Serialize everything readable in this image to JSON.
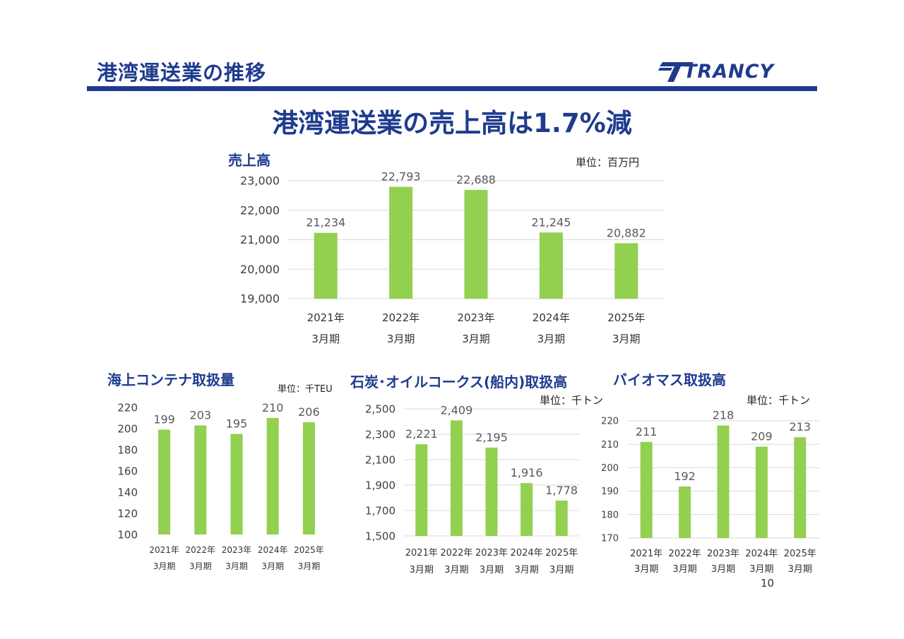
{
  "header": {
    "title": "港湾運送業の推移",
    "logo_text": "TRANCY"
  },
  "headline": "港湾運送業の売上高は1.7%減",
  "page_number": "10",
  "colors": {
    "brand": "#1f3b8f",
    "bar": "#92d050",
    "grid": "#d9d9d9",
    "label": "#595959"
  },
  "chart_data": [
    {
      "type": "bar",
      "title": "売上高",
      "unit": "単位：百万円",
      "categories": [
        "2021年\n3月期",
        "2022年\n3月期",
        "2023年\n3月期",
        "2024年\n3月期",
        "2025年\n3月期"
      ],
      "values": [
        21234,
        22793,
        22688,
        21245,
        20882
      ],
      "value_labels": [
        "21,234",
        "22,793",
        "22,688",
        "21,245",
        "20,882"
      ],
      "ylim": [
        19000,
        23000
      ],
      "yticks": [
        19000,
        20000,
        21000,
        22000,
        23000
      ],
      "ytick_labels": [
        "19,000",
        "20,000",
        "21,000",
        "22,000",
        "23,000"
      ],
      "grid": true
    },
    {
      "type": "bar",
      "title": "海上コンテナ取扱量",
      "unit": "単位：千TEU",
      "categories": [
        "2021年\n3月期",
        "2022年\n3月期",
        "2023年\n3月期",
        "2024年\n3月期",
        "2025年\n3月期"
      ],
      "values": [
        199,
        203,
        195,
        210,
        206
      ],
      "value_labels": [
        "199",
        "203",
        "195",
        "210",
        "206"
      ],
      "ylim": [
        100,
        220
      ],
      "yticks": [
        100,
        120,
        140,
        160,
        180,
        200,
        220
      ],
      "ytick_labels": [
        "100",
        "120",
        "140",
        "160",
        "180",
        "200",
        "220"
      ],
      "grid": false
    },
    {
      "type": "bar",
      "title": "石炭･オイルコークス(船内)取扱高",
      "unit": "単位：千トン",
      "categories": [
        "2021年\n3月期",
        "2022年\n3月期",
        "2023年\n3月期",
        "2024年\n3月期",
        "2025年\n3月期"
      ],
      "values": [
        2221,
        2409,
        2195,
        1916,
        1778
      ],
      "value_labels": [
        "2,221",
        "2,409",
        "2,195",
        "1,916",
        "1,778"
      ],
      "ylim": [
        1500,
        2500
      ],
      "yticks": [
        1500,
        1700,
        1900,
        2100,
        2300,
        2500
      ],
      "ytick_labels": [
        "1,500",
        "1,700",
        "1,900",
        "2,100",
        "2,300",
        "2,500"
      ],
      "grid": true
    },
    {
      "type": "bar",
      "title": "バイオマス取扱高",
      "unit": "単位：千トン",
      "categories": [
        "2021年\n3月期",
        "2022年\n3月期",
        "2023年\n3月期",
        "2024年\n3月期",
        "2025年\n3月期"
      ],
      "values": [
        211,
        192,
        218,
        209,
        213
      ],
      "value_labels": [
        "211",
        "192",
        "218",
        "209",
        "213"
      ],
      "ylim": [
        170,
        220
      ],
      "yticks": [
        170,
        180,
        190,
        200,
        210,
        220
      ],
      "ytick_labels": [
        "170",
        "180",
        "190",
        "200",
        "210",
        "220"
      ],
      "grid": true
    }
  ]
}
